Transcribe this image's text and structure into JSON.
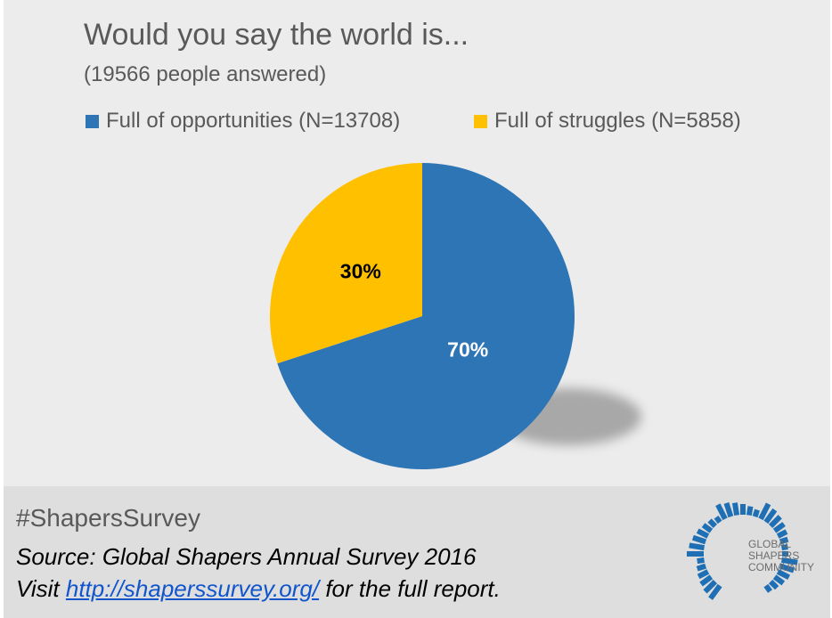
{
  "chart_data": {
    "type": "pie",
    "title": "Would you say the world is...",
    "subtitle": "(19566 people answered)",
    "slices": [
      {
        "label": "Full of opportunities (N=13708)",
        "value": 70,
        "display": "70%",
        "color": "#2e75b6",
        "label_color": "#ffffff"
      },
      {
        "label": "Full of struggles (N=5858)",
        "value": 30,
        "display": "30%",
        "color": "#ffc000",
        "label_color": "#000000"
      }
    ],
    "legend_position": "top"
  },
  "footer": {
    "hashtag": "#ShapersSurvey",
    "source": "Source: Global Shapers Annual Survey 2016",
    "visit_prefix": "Visit ",
    "link": "http://shaperssurvey.org/",
    "visit_suffix": " for the full report."
  },
  "logo": {
    "line1": "GLOBAL",
    "line2": "SHAPERS",
    "line3": "COMMUNITY",
    "color": "#1f6fb5"
  }
}
